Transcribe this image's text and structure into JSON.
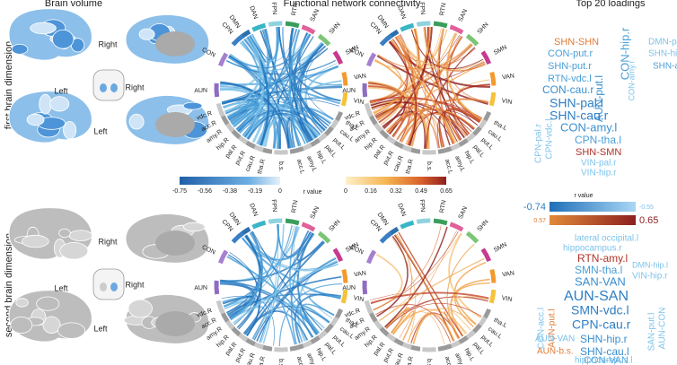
{
  "titles": [
    "Brain volume",
    "Functional network connectivity",
    "Top 20 loadings"
  ],
  "rows": [
    {
      "label": "first brain dimension",
      "brain_labels": [
        "Right",
        "Left",
        "Right",
        "Left"
      ],
      "words": [
        {
          "text": "SHN-SHN",
          "color": "#e07b39"
        },
        {
          "text": "CON-hip.r",
          "color": "#4a9fd8"
        },
        {
          "text": "DMN-put.l",
          "color": "#7ec3ea"
        },
        {
          "text": "SHN-hip.l",
          "color": "#7ec3ea"
        },
        {
          "text": "CON-put.r",
          "color": "#4a9fd8"
        },
        {
          "text": "SHN-put.r",
          "color": "#4a9fd8"
        },
        {
          "text": "SHN-acc.r",
          "color": "#4a9fd8"
        },
        {
          "text": "RTN-vdc.l",
          "color": "#4a9fd8"
        },
        {
          "text": "CON-cau.r",
          "color": "#3a8fd0"
        },
        {
          "text": "CON-amy.r",
          "color": "#7ec3ea"
        },
        {
          "text": "AUN-put.l",
          "color": "#3a8fd0"
        },
        {
          "text": "SHN-pal.l",
          "color": "#2f7fc4"
        },
        {
          "text": "SHN-cau.r",
          "color": "#2f7fc4"
        },
        {
          "text": "CPN-pal.r",
          "color": "#7ec3ea"
        },
        {
          "text": "CPN-vdc.l",
          "color": "#7ec3ea"
        },
        {
          "text": "CON-amy.l",
          "color": "#3a8fd0"
        },
        {
          "text": "CPN-tha.l",
          "color": "#4a9fd8"
        },
        {
          "text": "SHN-SMN",
          "color": "#b0332a"
        },
        {
          "text": "VIN-pal.r",
          "color": "#7ec3ea"
        },
        {
          "text": "VIN-hip.r",
          "color": "#7ec3ea"
        }
      ]
    },
    {
      "label": "second brain dimension",
      "brain_labels": [
        "Right",
        "Left",
        "Right",
        "Left"
      ],
      "words": [
        {
          "text": "lateral occipital.l",
          "color": "#7ec3ea"
        },
        {
          "text": "hippocampus.r",
          "color": "#7ec3ea"
        },
        {
          "text": "RTN-amy.l",
          "color": "#b0332a"
        },
        {
          "text": "SMN-tha.l",
          "color": "#4a9fd8"
        },
        {
          "text": "SAN-VAN",
          "color": "#3a8fd0"
        },
        {
          "text": "DMN-hip.l",
          "color": "#7ec3ea"
        },
        {
          "text": "VIN-hip.r",
          "color": "#7ec3ea"
        },
        {
          "text": "AUN-SAN",
          "color": "#2f7fc4"
        },
        {
          "text": "CON-acc.l",
          "color": "#7ec3ea"
        },
        {
          "text": "AUN-put.l",
          "color": "#e07b39"
        },
        {
          "text": "SMN-vdc.l",
          "color": "#2f7fc4"
        },
        {
          "text": "CPN-cau.r",
          "color": "#2f7fc4"
        },
        {
          "text": "SAN-put.l",
          "color": "#7ec3ea"
        },
        {
          "text": "AUN-CON",
          "color": "#7ec3ea"
        },
        {
          "text": "AUN-VAN",
          "color": "#7ec3ea"
        },
        {
          "text": "SHN-hip.r",
          "color": "#3a8fd0"
        },
        {
          "text": "AUN-b.s.",
          "color": "#e07b39"
        },
        {
          "text": "SHN-cau.l",
          "color": "#3a8fd0"
        },
        {
          "text": "CON-VAN",
          "color": "#4a9fd8"
        },
        {
          "text": "hippocampus.l",
          "color": "#7ec3ea"
        }
      ]
    }
  ],
  "nodes": [
    "DMN",
    "DAN",
    "FPN",
    "RTN",
    "SAN",
    "SHN",
    "SMN",
    "VAN",
    "VIN",
    "tha.L",
    "cau.L",
    "put.L",
    "pal.L",
    "hip.L",
    "amy.L",
    "acc.L",
    "b.s.",
    "tha.R",
    "cau.R",
    "put.R",
    "pal.R",
    "hip.R",
    "amy.R",
    "acc.R",
    "vdc.R",
    "AUN",
    "CON",
    "CPN"
  ],
  "colorbar": {
    "label": "r value",
    "negative": [
      "-0.75",
      "-0.56",
      "-0.38",
      "-0.19",
      "0"
    ],
    "positive": [
      "0",
      "0.16",
      "0.32",
      "0.49",
      "0.65"
    ]
  },
  "legend": {
    "label": "r value",
    "negative": [
      "-0.74",
      "-0.55"
    ],
    "positive": [
      "0.57",
      "0.65"
    ]
  }
}
